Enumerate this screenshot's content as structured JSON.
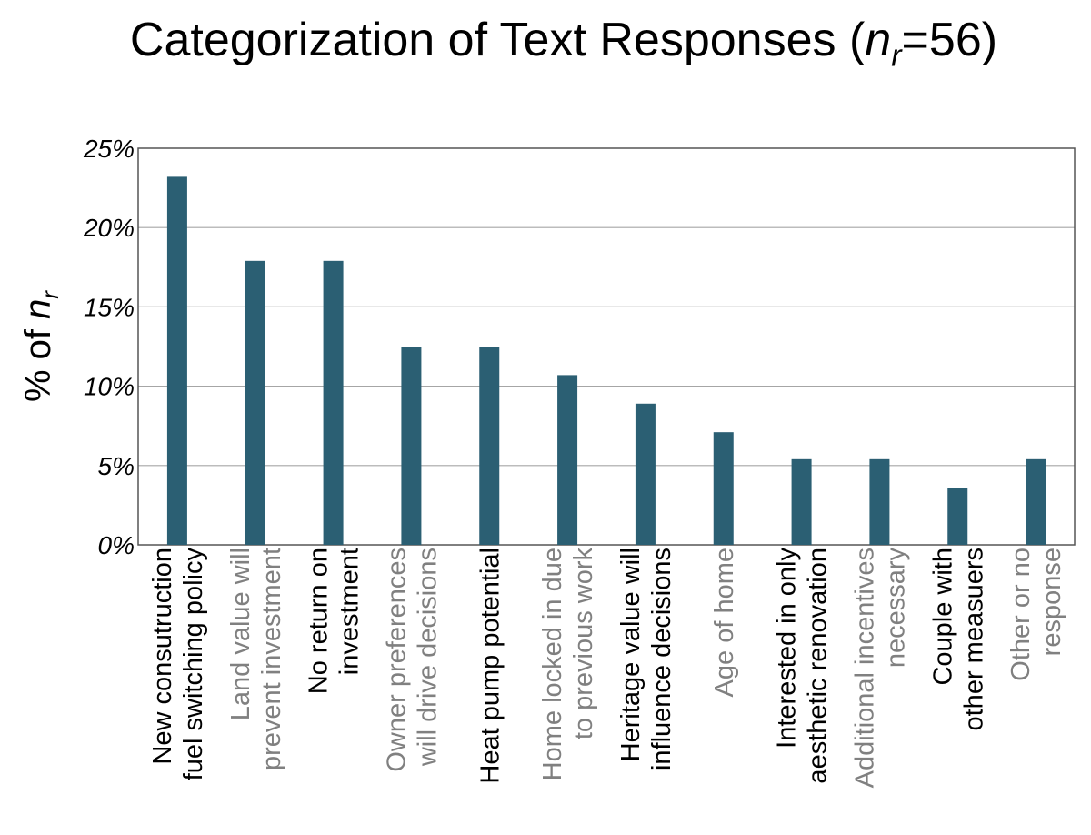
{
  "chart_data": {
    "type": "bar",
    "title": {
      "prefix": "Categorization of Text Responses (",
      "var": "n",
      "sub": "r",
      "suffix": "=56)"
    },
    "ylabel": {
      "prefix": "% of ",
      "var": "n",
      "sub": "r"
    },
    "xlabel": "",
    "ylim": [
      0,
      25
    ],
    "yticks": [
      "0%",
      "5%",
      "10%",
      "15%",
      "20%",
      "25%"
    ],
    "grid": true,
    "bar_color": "#2b5f73",
    "categories": [
      {
        "lines": [
          "New consutruction",
          "fuel switching policy"
        ],
        "color": "#000000"
      },
      {
        "lines": [
          "Land value will",
          "prevent investment"
        ],
        "color": "#808080"
      },
      {
        "lines": [
          "No return on",
          "investment"
        ],
        "color": "#000000"
      },
      {
        "lines": [
          "Owner preferences",
          "will drive decisions"
        ],
        "color": "#808080"
      },
      {
        "lines": [
          "Heat pump potential"
        ],
        "color": "#000000"
      },
      {
        "lines": [
          "Home locked in due",
          "to previous work"
        ],
        "color": "#808080"
      },
      {
        "lines": [
          "Heritage value will",
          "influence decisions"
        ],
        "color": "#000000"
      },
      {
        "lines": [
          "Age of home"
        ],
        "color": "#808080"
      },
      {
        "lines": [
          "Interested in only",
          "aesthetic renovation"
        ],
        "color": "#000000"
      },
      {
        "lines": [
          "Additional incentives",
          "necessary"
        ],
        "color": "#808080"
      },
      {
        "lines": [
          "Couple with",
          "other measuers"
        ],
        "color": "#000000"
      },
      {
        "lines": [
          "Other or no",
          "response"
        ],
        "color": "#808080"
      }
    ],
    "values": [
      23.2,
      17.9,
      17.9,
      12.5,
      12.5,
      10.7,
      8.9,
      7.1,
      5.4,
      5.4,
      3.6,
      5.4
    ]
  }
}
